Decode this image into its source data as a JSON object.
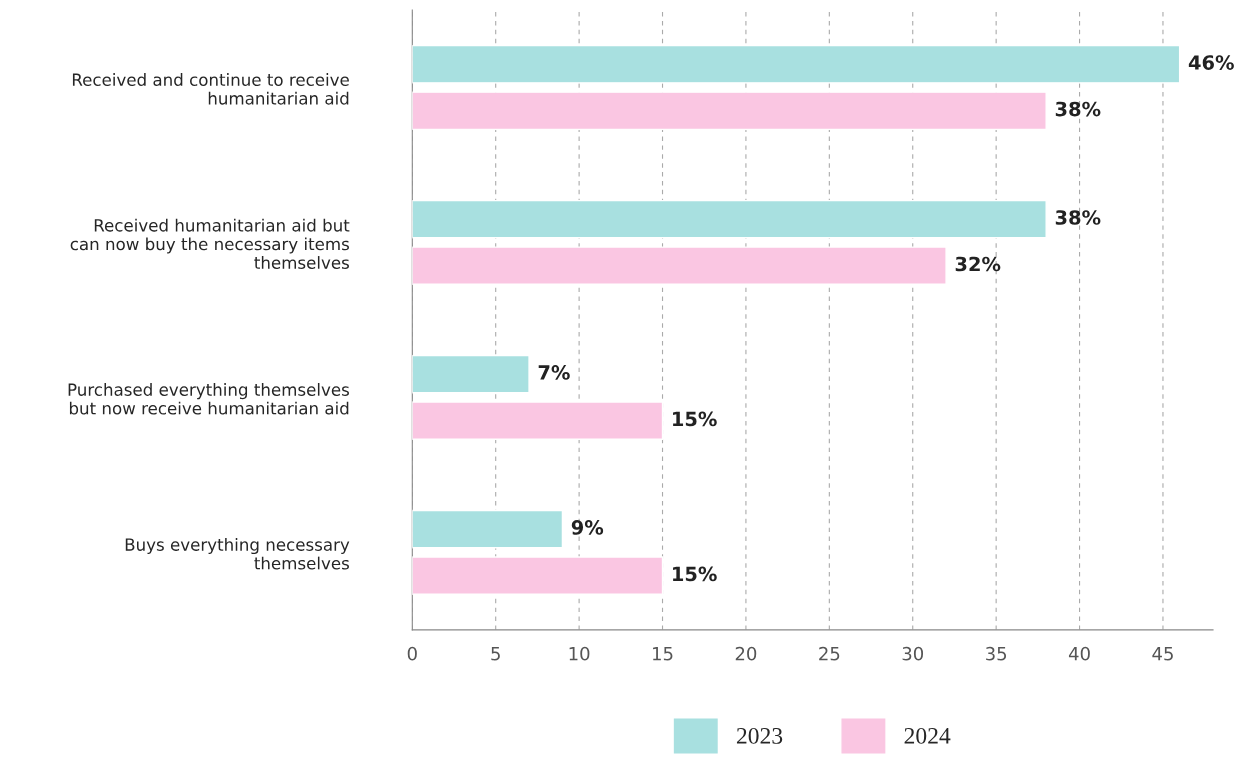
{
  "chart_data": {
    "type": "bar",
    "orientation": "horizontal",
    "categories": [
      "Received and continue to receive\nhumanitarian aid",
      "Received humanitarian aid but\ncan now buy the necessary items\nthemselves",
      "Purchased everything themselves\nbut now receive humanitarian aid",
      "Buys everything necessary\nthemselves"
    ],
    "series": [
      {
        "name": "2023",
        "color": "#a8e0e0",
        "values": [
          46,
          38,
          7,
          9
        ],
        "value_labels": [
          "46%",
          "38%",
          "7%",
          "9%"
        ]
      },
      {
        "name": "2024",
        "color": "#fac6e2",
        "values": [
          38,
          32,
          15,
          15
        ],
        "value_labels": [
          "38%",
          "32%",
          "15%",
          "15%"
        ]
      }
    ],
    "xlim": [
      0,
      48
    ],
    "xticks": [
      0,
      5,
      10,
      15,
      20,
      25,
      30,
      35,
      40,
      45
    ],
    "grid": "x",
    "legend": "bottom"
  }
}
